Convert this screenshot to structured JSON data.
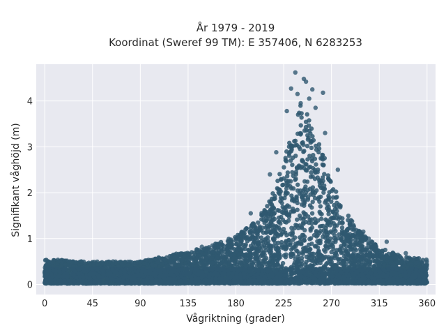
{
  "chart_data": {
    "type": "scatter",
    "title_line1": "År 1979 - 2019",
    "title_line2": "Koordinat (Sweref 99 TM): E 357406, N 6283253",
    "xlabel": "Vågriktning (grader)",
    "ylabel": "Signifikant våghöjd (m)",
    "xlim": [
      -8,
      368
    ],
    "ylim": [
      -0.22,
      4.8
    ],
    "xticks": [
      0,
      45,
      90,
      135,
      180,
      225,
      270,
      315,
      360
    ],
    "yticks": [
      0,
      1,
      2,
      3,
      4
    ],
    "grid": true,
    "colors": {
      "background": "#e8e9f0",
      "grid": "#ffffff",
      "marker": "#2f5870"
    },
    "envelope": [
      {
        "x": 0,
        "y": 0.55
      },
      {
        "x": 45,
        "y": 0.5
      },
      {
        "x": 90,
        "y": 0.5
      },
      {
        "x": 120,
        "y": 0.65
      },
      {
        "x": 150,
        "y": 0.8
      },
      {
        "x": 180,
        "y": 1.05
      },
      {
        "x": 200,
        "y": 1.4
      },
      {
        "x": 215,
        "y": 2.0
      },
      {
        "x": 225,
        "y": 2.7
      },
      {
        "x": 235,
        "y": 3.5
      },
      {
        "x": 240,
        "y": 3.9
      },
      {
        "x": 245,
        "y": 3.9
      },
      {
        "x": 250,
        "y": 3.6
      },
      {
        "x": 260,
        "y": 3.0
      },
      {
        "x": 270,
        "y": 2.3
      },
      {
        "x": 280,
        "y": 1.7
      },
      {
        "x": 295,
        "y": 1.2
      },
      {
        "x": 315,
        "y": 0.8
      },
      {
        "x": 340,
        "y": 0.6
      },
      {
        "x": 360,
        "y": 0.55
      }
    ],
    "extreme_points": [
      {
        "x": 236,
        "y": 4.62
      },
      {
        "x": 244,
        "y": 4.48
      },
      {
        "x": 246,
        "y": 4.42
      },
      {
        "x": 232,
        "y": 4.27
      },
      {
        "x": 252,
        "y": 4.25
      },
      {
        "x": 262,
        "y": 4.18
      },
      {
        "x": 238,
        "y": 4.15
      },
      {
        "x": 249,
        "y": 4.05
      },
      {
        "x": 241,
        "y": 3.95
      },
      {
        "x": 228,
        "y": 3.78
      },
      {
        "x": 255,
        "y": 3.85
      },
      {
        "x": 264,
        "y": 3.3
      },
      {
        "x": 218,
        "y": 2.88
      },
      {
        "x": 212,
        "y": 2.4
      },
      {
        "x": 276,
        "y": 2.5
      },
      {
        "x": 190,
        "y": 1.22
      },
      {
        "x": 194,
        "y": 1.55
      },
      {
        "x": 300,
        "y": 1.15
      },
      {
        "x": 322,
        "y": 0.93
      },
      {
        "x": 305,
        "y": 1.0
      },
      {
        "x": 340,
        "y": 0.68
      },
      {
        "x": 158,
        "y": 0.85
      },
      {
        "x": 148,
        "y": 0.82
      },
      {
        "x": 180,
        "y": 1.0
      }
    ]
  }
}
